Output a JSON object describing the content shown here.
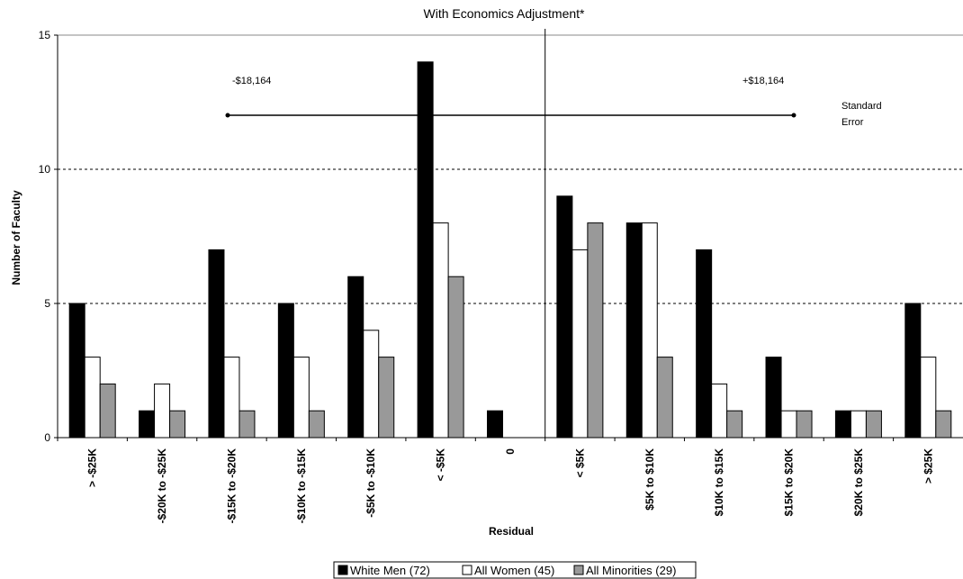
{
  "chart_data": {
    "type": "bar",
    "title": "With Economics Adjustment*",
    "xlabel": "Residual",
    "ylabel": "Number of Faculty",
    "ylim": [
      0,
      15
    ],
    "yticks": [
      "0",
      "5",
      "10",
      "15"
    ],
    "grid": "dashed horizontal at 5 and 10",
    "categories": [
      "> -$25K",
      "-$20K to -$25K",
      "-$15K to -$20K",
      "-$10K to -$15K",
      "-$5K to -$10K",
      "< -$5K",
      "0",
      "< $5K",
      "$5K to $10K",
      "$10K to $15K",
      "$15K to $20K",
      "$20K to $25K",
      "> $25K"
    ],
    "series": [
      {
        "name": "White Men (72)",
        "color": "#000000",
        "values": [
          5,
          1,
          7,
          5,
          6,
          14,
          1,
          9,
          8,
          7,
          3,
          1,
          5
        ]
      },
      {
        "name": "All Women (45)",
        "color": "#ffffff",
        "values": [
          3,
          2,
          3,
          3,
          4,
          8,
          0,
          7,
          8,
          2,
          1,
          1,
          3
        ]
      },
      {
        "name": "All Minorities (29)",
        "color": "#999999",
        "values": [
          2,
          1,
          1,
          1,
          3,
          6,
          0,
          8,
          3,
          1,
          1,
          1,
          1
        ]
      }
    ],
    "annotations": {
      "left_error": "-$18,164",
      "right_error": "+$18,164",
      "standard_error_line1": "Standard",
      "standard_error_line2": "Error"
    },
    "legend_position": "bottom-center"
  }
}
